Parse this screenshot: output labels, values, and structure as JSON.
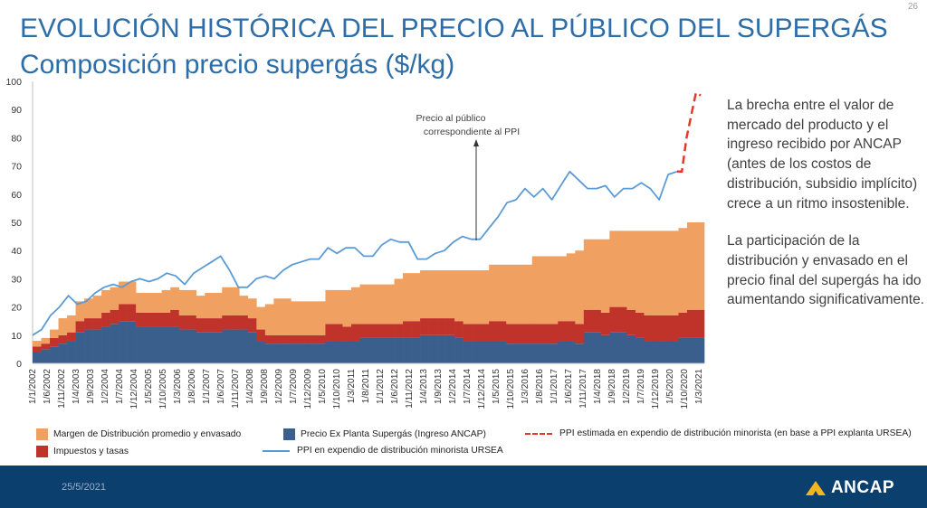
{
  "slide": {
    "page_number": "26",
    "title": "EVOLUCIÓN HISTÓRICA DEL PRECIO AL PÚBLICO DEL SUPERGÁS",
    "subtitle": "Composición precio supergás ($/kg)",
    "date": "25/5/2021",
    "logo_text": "ANCAP"
  },
  "side_text": {
    "paragraph_1": "La brecha entre el valor de mercado del producto y el ingreso recibido por ANCAP (antes de los costos de distribución, subsidio implícito) crece a un ritmo insostenible.",
    "paragraph_2": "La participación de la distribución y envasado en el precio final del supergás ha ido aumentando significativamente."
  },
  "colors": {
    "margin": "#f0a061",
    "taxes": "#c0332b",
    "base": "#3b5f8c",
    "ppi": "#5b9bd5",
    "ppi_est": "#e03a2a",
    "title": "#2d6ea8",
    "footer": "#0b3f6e",
    "logo_accent": "#f2b51c"
  },
  "chart_data": {
    "type": "bar",
    "stacked": true,
    "title": "Composición precio supergás ($/kg)",
    "xlabel": "",
    "ylabel": "",
    "ylim": [
      0,
      100
    ],
    "yticks": [
      0,
      10,
      20,
      30,
      40,
      50,
      60,
      70,
      80,
      90,
      100
    ],
    "grid": false,
    "legend_position": "bottom",
    "xtick_labels": [
      "1/1/2002",
      "1/6/2002",
      "1/11/2002",
      "1/4/2003",
      "1/9/2003",
      "1/2/2004",
      "1/7/2004",
      "1/12/2004",
      "1/5/2005",
      "1/10/2005",
      "1/3/2006",
      "1/8/2006",
      "1/1/2007",
      "1/6/2007",
      "1/11/2007",
      "1/4/2008",
      "1/9/2008",
      "1/2/2009",
      "1/7/2009",
      "1/12/2009",
      "1/5/2010",
      "1/10/2010",
      "1/3/2011",
      "1/8/2011",
      "1/1/2012",
      "1/6/2012",
      "1/11/2012",
      "1/4/2013",
      "1/9/2013",
      "1/2/2014",
      "1/7/2014",
      "1/12/2014",
      "1/5/2015",
      "1/10/2015",
      "1/3/2016",
      "1/8/2016",
      "1/1/2017",
      "1/6/2017",
      "1/11/2017",
      "1/4/2018",
      "1/9/2018",
      "1/2/2019",
      "1/7/2019",
      "1/12/2019",
      "1/5/2020",
      "1/10/2020",
      "1/3/2021"
    ],
    "x_period": "quarterly, 2002Q1 to 2021Q2",
    "series": [
      {
        "name": "Precio Ex Planta Supergás (Ingreso ANCAP)",
        "kind": "bar",
        "values": [
          4,
          5,
          6,
          7,
          8,
          11,
          12,
          12,
          13,
          14,
          15,
          15,
          13,
          13,
          13,
          13,
          13,
          12,
          12,
          11,
          11,
          11,
          12,
          12,
          12,
          11,
          8,
          7,
          7,
          7,
          7,
          7,
          7,
          7,
          8,
          8,
          8,
          8,
          9,
          9,
          9,
          9,
          9,
          9,
          9,
          10,
          10,
          10,
          10,
          9,
          8,
          8,
          8,
          8,
          8,
          7,
          7,
          7,
          7,
          7,
          7,
          8,
          8,
          7,
          11,
          11,
          10,
          11,
          11,
          10,
          9,
          8,
          8,
          8,
          8,
          9,
          9,
          9
        ]
      },
      {
        "name": "Impuestos y tasas",
        "kind": "bar",
        "values": [
          2,
          2,
          3,
          3,
          3,
          4,
          4,
          4,
          5,
          5,
          6,
          6,
          5,
          5,
          5,
          5,
          6,
          5,
          5,
          5,
          5,
          5,
          5,
          5,
          5,
          5,
          4,
          3,
          3,
          3,
          3,
          3,
          3,
          3,
          6,
          6,
          5,
          6,
          5,
          5,
          5,
          5,
          5,
          6,
          6,
          6,
          6,
          6,
          6,
          6,
          6,
          6,
          6,
          7,
          7,
          7,
          7,
          7,
          7,
          7,
          7,
          7,
          7,
          7,
          8,
          8,
          8,
          9,
          9,
          9,
          9,
          9,
          9,
          9,
          9,
          9,
          10,
          10
        ]
      },
      {
        "name": "Margen de Distribución promedio y envasado",
        "kind": "bar",
        "values": [
          2,
          2,
          3,
          6,
          6,
          7,
          7,
          8,
          8,
          8,
          8,
          8,
          7,
          7,
          7,
          8,
          8,
          9,
          9,
          8,
          9,
          9,
          10,
          10,
          7,
          7,
          8,
          11,
          13,
          13,
          12,
          12,
          12,
          12,
          12,
          12,
          13,
          13,
          14,
          14,
          14,
          14,
          16,
          17,
          17,
          17,
          17,
          17,
          17,
          18,
          19,
          19,
          19,
          20,
          20,
          21,
          21,
          21,
          24,
          24,
          24,
          23,
          24,
          26,
          25,
          25,
          26,
          27,
          27,
          28,
          29,
          30,
          30,
          30,
          30,
          30,
          31,
          31
        ]
      },
      {
        "name": "PPI en expendio de distribución minorista URSEA",
        "kind": "line",
        "values": [
          10,
          12,
          17,
          20,
          24,
          21,
          22,
          25,
          27,
          28,
          27,
          29,
          30,
          29,
          30,
          32,
          31,
          28,
          32,
          34,
          36,
          38,
          33,
          27,
          27,
          30,
          31,
          30,
          33,
          35,
          36,
          37,
          37,
          41,
          39,
          41,
          41,
          38,
          38,
          42,
          44,
          43,
          43,
          37,
          37,
          39,
          40,
          43,
          45,
          44,
          44,
          48,
          52,
          57,
          58,
          62,
          59,
          62,
          58,
          63,
          68,
          65,
          62,
          62,
          63,
          59,
          62,
          62,
          64,
          62,
          58,
          67,
          68
        ]
      },
      {
        "name": "PPI estimada en expendio de distribución minorista (en base a PPI explanta URSEA)",
        "kind": "line-dashed",
        "start_index": 72,
        "values": [
          68,
          68,
          80,
          88,
          96,
          95
        ]
      }
    ],
    "annotations": [
      {
        "text": "Precio al público correspondiente al PPI",
        "points_to_index": 49
      }
    ]
  }
}
